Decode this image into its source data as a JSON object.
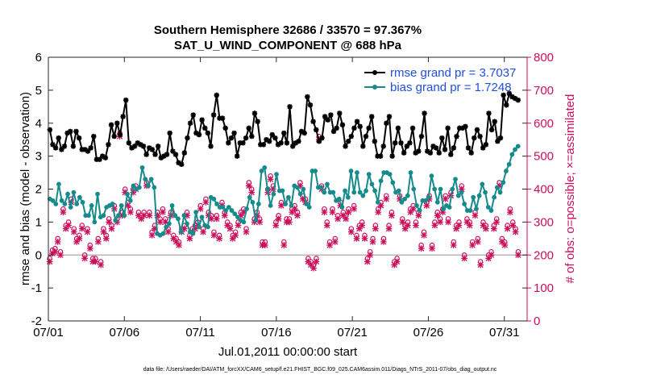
{
  "chart_data": {
    "type": "line",
    "title_line1": "Southern Hemisphere 32686 / 33570 = 97.367%",
    "title_line2": "SAT_U_WIND_COMPONENT @ 688 hPa",
    "ylabel_left": "rmse and bias (model - observation)",
    "ylabel_right": "# of obs: o=possible; ×=assimilated",
    "xlabel": "Jul.01,2011 00:00:00 start",
    "footer": "data file: /Users/raeder/DAI/ATM_forcXX/CAM6_setup/f.e21.FHIST_BGC.f09_025.CAM6assim.011/Diags_NTrS_2011-07/obs_diag_output.nc",
    "x_range_days": [
      0,
      31.5
    ],
    "x_ticks": [
      {
        "day": 0,
        "label": "07/01"
      },
      {
        "day": 5,
        "label": "07/06"
      },
      {
        "day": 10,
        "label": "07/11"
      },
      {
        "day": 15,
        "label": "07/16"
      },
      {
        "day": 20,
        "label": "07/21"
      },
      {
        "day": 25,
        "label": "07/26"
      },
      {
        "day": 30,
        "label": "07/31"
      }
    ],
    "ylim_left": [
      -2,
      6
    ],
    "yticks_left": [
      "-2",
      "-1",
      "0",
      "1",
      "2",
      "3",
      "4",
      "5",
      "6"
    ],
    "ylim_right": [
      0,
      800
    ],
    "yticks_right": [
      "0",
      "100",
      "200",
      "300",
      "400",
      "500",
      "600",
      "700",
      "800"
    ],
    "zero_line": 0,
    "legend_placement": "top-right",
    "colors": {
      "rmse": "#000000",
      "bias": "#178b8b",
      "obs": "#cc0e5b",
      "zero": "#b8b8b8"
    },
    "series": [
      {
        "name": "rmse grand pr = 3.7037",
        "color": "#000000",
        "values": [
          3.8,
          3.35,
          3.25,
          3.55,
          3.2,
          3.3,
          3.7,
          3.75,
          3.3,
          3.75,
          3.55,
          3.2,
          3.2,
          3.15,
          3.25,
          3.6,
          2.9,
          2.9,
          3.0,
          2.95,
          3.35,
          3.95,
          3.6,
          4.0,
          3.65,
          4.2,
          4.7,
          3.4,
          3.25,
          3.3,
          3.4,
          3.35,
          3.3,
          3.05,
          3.25,
          3.2,
          3.05,
          3.3,
          2.95,
          3.0,
          3.05,
          3.7,
          3.15,
          3.05,
          2.8,
          2.75,
          3.1,
          3.55,
          4.0,
          4.25,
          3.7,
          3.65,
          4.1,
          3.85,
          3.7,
          3.3,
          4.25,
          4.85,
          4.15,
          4.15,
          3.85,
          3.4,
          3.55,
          3.7,
          3.0,
          3.4,
          3.4,
          3.55,
          3.85,
          3.6,
          4.3,
          4.05,
          3.35,
          3.35,
          3.5,
          3.45,
          3.65,
          3.55,
          3.35,
          3.4,
          3.7,
          3.4,
          4.5,
          3.3,
          3.4,
          3.45,
          3.75,
          3.7,
          4.8,
          4.55,
          4.05,
          3.8,
          3.45,
          3.55,
          4.2,
          4.1,
          4.25,
          3.75,
          3.85,
          4.3,
          3.95,
          3.3,
          3.45,
          3.6,
          3.85,
          4.05,
          3.9,
          3.3,
          3.6,
          3.85,
          4.2,
          3.45,
          3.0,
          3.0,
          3.3,
          4.0,
          4.2,
          3.0,
          3.4,
          3.85,
          3.4,
          3.1,
          3.3,
          3.4,
          3.85,
          3.1,
          3.15,
          3.6,
          4.3,
          3.15,
          3.1,
          3.3,
          3.25,
          3.1,
          3.55,
          3.2,
          3.85,
          3.05,
          3.25,
          3.6,
          3.85,
          3.85,
          3.9,
          3.25,
          3.1,
          3.55,
          3.8,
          3.6,
          3.25,
          3.35,
          4.3,
          3.8,
          4.05,
          3.45,
          3.55,
          4.85,
          4.55,
          4.9,
          4.8,
          4.75,
          4.7
        ]
      },
      {
        "name": "bias grand pr = 1.7248",
        "color": "#178b8b",
        "values": [
          1.7,
          1.65,
          1.55,
          2.15,
          1.65,
          1.55,
          1.85,
          1.45,
          1.9,
          1.55,
          1.75,
          1.6,
          1.2,
          1.2,
          1.5,
          1.0,
          1.85,
          1.15,
          1.2,
          1.45,
          1.5,
          1.55,
          1.05,
          1.2,
          1.5,
          1.2,
          1.85,
          1.65,
          2.1,
          2.0,
          2.05,
          2.65,
          2.3,
          2.1,
          2.3,
          2.05,
          0.65,
          0.6,
          0.65,
          0.85,
          0.95,
          1.5,
          1.2,
          1.1,
          0.7,
          1.2,
          0.95,
          0.7,
          0.65,
          1.3,
          0.85,
          1.15,
          0.9,
          0.85,
          1.75,
          1.7,
          1.55,
          1.45,
          1.45,
          1.35,
          1.45,
          1.35,
          1.25,
          1.15,
          1.05,
          1.0,
          1.4,
          1.75,
          1.6,
          1.05,
          1.55,
          2.55,
          2.65,
          2.0,
          1.5,
          1.85,
          2.45,
          1.95,
          1.95,
          1.55,
          1.75,
          1.5,
          2.1,
          2.05,
          1.85,
          2.0,
          1.55,
          1.45,
          2.55,
          2.55,
          2.05,
          2.05,
          1.9,
          2.15,
          1.9,
          1.9,
          1.65,
          1.7,
          1.45,
          1.95,
          1.75,
          2.55,
          1.9,
          2.5,
          1.9,
          1.8,
          1.95,
          2.45,
          2.15,
          1.95,
          1.6,
          2.25,
          2.5,
          2.5,
          2.45,
          2.2,
          1.9,
          1.95,
          1.6,
          1.7,
          1.8,
          2.5,
          2.0,
          1.5,
          1.35,
          1.65,
          1.65,
          1.75,
          2.4,
          2.0,
          1.6,
          2.0,
          1.4,
          1.5,
          1.45,
          2.0,
          2.3,
          1.8,
          1.9,
          1.55,
          1.35,
          1.35,
          1.75,
          1.4,
          1.8,
          2.15,
          1.9,
          1.45,
          1.35,
          1.75,
          2.05,
          1.9,
          2.2,
          2.55,
          2.75,
          3.05,
          3.2,
          3.3
        ]
      },
      {
        "name": "obs_possible",
        "color": "#cc0e5b",
        "values": [
          190,
          215,
          220,
          250,
          210,
          340,
          290,
          300,
          370,
          280,
          250,
          260,
          290,
          200,
          280,
          230,
          190,
          190,
          250,
          180,
          280,
          260,
          310,
          290,
          350,
          310,
          570,
          330,
          400,
          360,
          340,
          400,
          410,
          330,
          320,
          330,
          420,
          330,
          270,
          290,
          330,
          310,
          340,
          310,
          280,
          330,
          260,
          250,
          240,
          280,
          290,
          330,
          260,
          280,
          290,
          300,
          350,
          280,
          370,
          330,
          320,
          270,
          320,
          260,
          360,
          330,
          300,
          290,
          260,
          270,
          300,
          330,
          340,
          280,
          420,
          400,
          310,
          330,
          310,
          240,
          240,
          400,
          440,
          410,
          300,
          320,
          360,
          240,
          310,
          310,
          340,
          350,
          330,
          420,
          380,
          370,
          190,
          180,
          170,
          190,
          560,
          410,
          340,
          300,
          240,
          340,
          250,
          320,
          360,
          330,
          320,
          340,
          280,
          350,
          260,
          290,
          300,
          260,
          190,
          210,
          250,
          290,
          340,
          360,
          250,
          380,
          290,
          330,
          180,
          190,
          380,
          310,
          290,
          300,
          340,
          350,
          300,
          330,
          230,
          270,
          360,
          380,
          230,
          300,
          330,
          310,
          340,
          380,
          310,
          390,
          240,
          290,
          300,
          410,
          200,
          310,
          300,
          240,
          330,
          250,
          180,
          300,
          290,
          200,
          210,
          290,
          310,
          420,
          250,
          240,
          290,
          340,
          300,
          280,
          210
        ]
      },
      {
        "name": "obs_assimilated",
        "color": "#cc0e5b",
        "values": [
          180,
          205,
          210,
          240,
          200,
          330,
          280,
          290,
          360,
          270,
          240,
          250,
          280,
          190,
          270,
          220,
          180,
          180,
          240,
          170,
          270,
          250,
          300,
          280,
          340,
          300,
          560,
          320,
          390,
          350,
          330,
          390,
          400,
          320,
          310,
          320,
          410,
          320,
          260,
          280,
          320,
          300,
          330,
          300,
          270,
          320,
          250,
          240,
          230,
          270,
          280,
          320,
          250,
          270,
          280,
          290,
          340,
          270,
          360,
          320,
          310,
          260,
          310,
          250,
          350,
          320,
          290,
          280,
          250,
          260,
          290,
          320,
          330,
          270,
          410,
          390,
          300,
          320,
          300,
          230,
          230,
          390,
          430,
          400,
          290,
          310,
          350,
          230,
          300,
          300,
          330,
          340,
          320,
          410,
          370,
          360,
          180,
          170,
          160,
          180,
          550,
          400,
          330,
          290,
          230,
          330,
          240,
          310,
          350,
          320,
          310,
          330,
          270,
          340,
          250,
          280,
          290,
          250,
          180,
          200,
          240,
          280,
          330,
          350,
          240,
          370,
          280,
          320,
          170,
          180,
          370,
          300,
          280,
          290,
          330,
          340,
          290,
          320,
          220,
          260,
          350,
          370,
          220,
          290,
          320,
          300,
          330,
          370,
          300,
          380,
          230,
          280,
          290,
          400,
          190,
          300,
          290,
          230,
          320,
          240,
          170,
          290,
          280,
          190,
          200,
          280,
          300,
          410,
          240,
          230,
          280,
          330,
          290,
          270,
          200
        ]
      }
    ]
  }
}
